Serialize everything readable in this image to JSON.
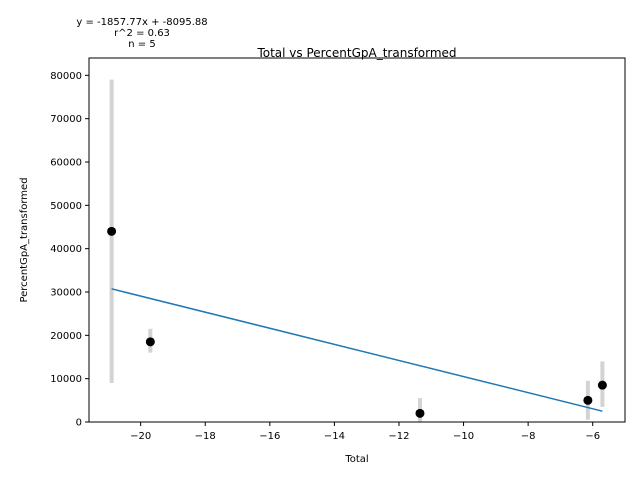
{
  "chart_data": {
    "type": "scatter",
    "title": "Total vs PercentGpA_transformed",
    "xlabel": "Total",
    "ylabel": "PercentGpA_transformed",
    "xlim": [
      -21.6,
      -5.0
    ],
    "ylim": [
      0,
      84000
    ],
    "x_ticks": [
      -20,
      -18,
      -16,
      -14,
      -12,
      -10,
      -8,
      -6
    ],
    "y_ticks": [
      0,
      10000,
      20000,
      30000,
      40000,
      50000,
      60000,
      70000,
      80000
    ],
    "x_tick_labels": [
      "−20",
      "−18",
      "−16",
      "−14",
      "−12",
      "−10",
      "−8",
      "−6"
    ],
    "y_tick_labels": [
      "0",
      "10000",
      "20000",
      "30000",
      "40000",
      "50000",
      "60000",
      "70000",
      "80000"
    ],
    "points": [
      {
        "x": -20.9,
        "y": 44000,
        "err_low": 9000,
        "err_high": 79000
      },
      {
        "x": -19.7,
        "y": 18500,
        "err_low": 16000,
        "err_high": 21500
      },
      {
        "x": -11.35,
        "y": 2000,
        "err_low": 0,
        "err_high": 5500
      },
      {
        "x": -6.15,
        "y": 5000,
        "err_low": 500,
        "err_high": 9500
      },
      {
        "x": -5.7,
        "y": 8500,
        "err_low": 3500,
        "err_high": 14000
      }
    ],
    "fit": {
      "slope": -1857.77,
      "intercept": -8095.88,
      "x_range": [
        -20.9,
        -5.7
      ]
    },
    "annotations": [
      "y = -1857.77x + -8095.88",
      "r^2 = 0.63",
      "n = 5"
    ],
    "colors": {
      "points": "#000000",
      "fit": "#1f77b4",
      "error_bars": "#d3d3d3"
    },
    "grid": false
  }
}
